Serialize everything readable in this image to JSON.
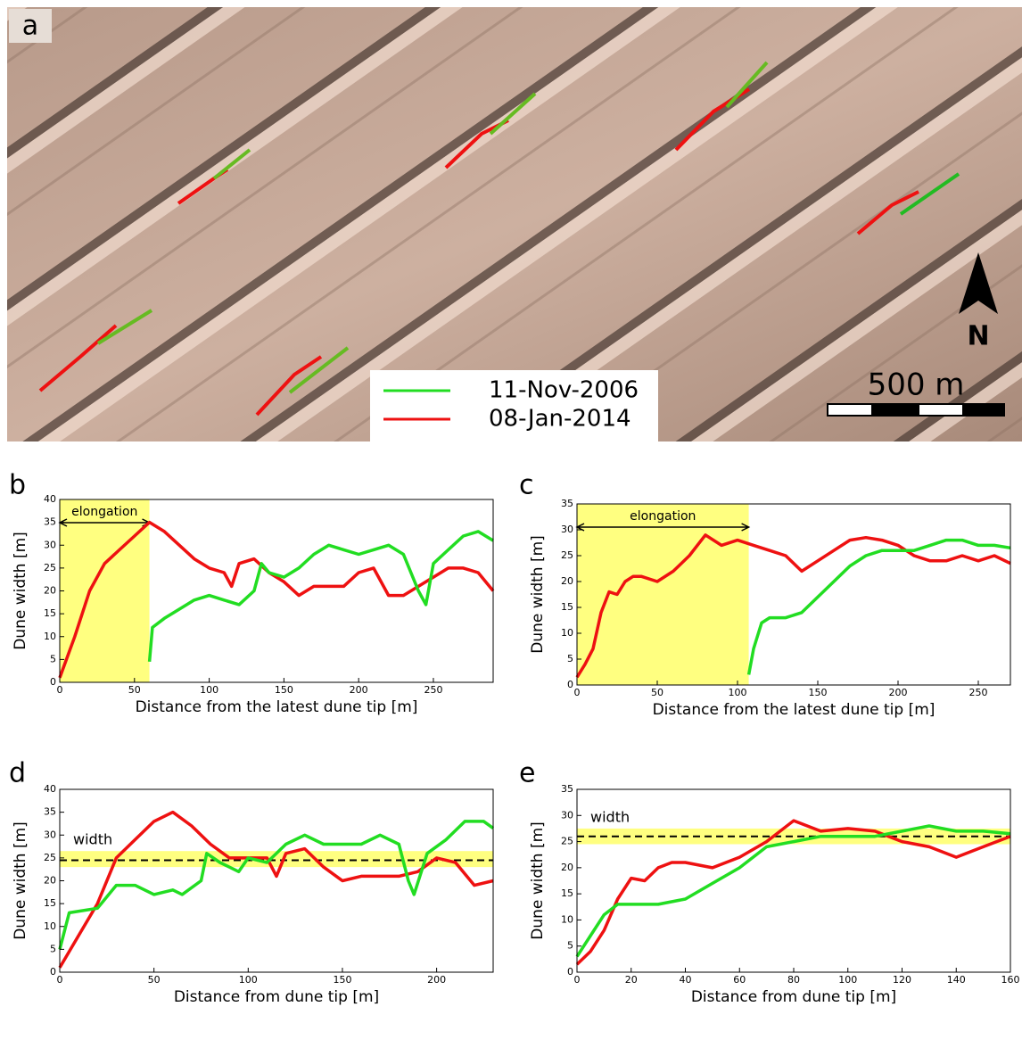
{
  "image_panel": {
    "label": "a",
    "legend": [
      {
        "name": "11-Nov-2006",
        "color": "#22dd22"
      },
      {
        "name": "08-Jan-2014",
        "color": "#ee1111"
      }
    ],
    "scale_label": "500 m",
    "north_label": "N"
  },
  "chart_data": [
    {
      "type": "line",
      "panel": "b",
      "xlabel": "Distance from the latest dune tip [m]",
      "ylabel": "Dune width [m]",
      "xlim": [
        0,
        290
      ],
      "ylim": [
        0,
        40
      ],
      "xticks": [
        0,
        50,
        100,
        150,
        200,
        250
      ],
      "yticks": [
        0,
        5,
        10,
        15,
        20,
        25,
        30,
        35,
        40
      ],
      "highlight_x": [
        0,
        60
      ],
      "highlight_label": "elongation",
      "series": [
        {
          "color": "#ee1111",
          "x": [
            0,
            10,
            20,
            30,
            40,
            50,
            60,
            70,
            80,
            90,
            100,
            110,
            115,
            120,
            130,
            140,
            150,
            160,
            170,
            180,
            190,
            200,
            210,
            220,
            230,
            240,
            250,
            260,
            270,
            280,
            290
          ],
          "values": [
            1,
            10,
            20,
            26,
            29,
            32,
            35,
            33,
            30,
            27,
            25,
            24,
            21,
            26,
            27,
            24,
            22,
            19,
            21,
            21,
            21,
            24,
            25,
            19,
            19,
            21,
            23,
            25,
            25,
            24,
            20
          ]
        },
        {
          "color": "#22dd22",
          "x": [
            60,
            62,
            70,
            80,
            90,
            100,
            110,
            120,
            130,
            135,
            140,
            150,
            160,
            170,
            180,
            190,
            200,
            210,
            220,
            230,
            240,
            245,
            250,
            260,
            270,
            280,
            290
          ],
          "values": [
            4.5,
            12,
            14,
            16,
            18,
            19,
            18,
            17,
            20,
            26,
            24,
            23,
            25,
            28,
            30,
            29,
            28,
            29,
            30,
            28,
            20,
            17,
            26,
            29,
            32,
            33,
            31
          ]
        }
      ]
    },
    {
      "type": "line",
      "panel": "c",
      "xlabel": "Distance from the latest dune tip [m]",
      "ylabel": "Dune width [m]",
      "xlim": [
        0,
        270
      ],
      "ylim": [
        0,
        35
      ],
      "xticks": [
        0,
        50,
        100,
        150,
        200,
        250
      ],
      "yticks": [
        0,
        5,
        10,
        15,
        20,
        25,
        30,
        35
      ],
      "highlight_x": [
        0,
        107
      ],
      "highlight_label": "elongation",
      "series": [
        {
          "color": "#ee1111",
          "x": [
            0,
            5,
            10,
            15,
            20,
            25,
            30,
            35,
            40,
            50,
            60,
            70,
            80,
            90,
            100,
            110,
            120,
            130,
            140,
            150,
            160,
            170,
            180,
            190,
            200,
            210,
            220,
            230,
            240,
            250,
            260,
            270
          ],
          "values": [
            1.5,
            4,
            7,
            14,
            18,
            17.5,
            20,
            21,
            21,
            20,
            22,
            25,
            29,
            27,
            28,
            27,
            26,
            25,
            22,
            24,
            26,
            28,
            28.5,
            28,
            27,
            25,
            24,
            24,
            25,
            24,
            25,
            23.5
          ]
        },
        {
          "color": "#22dd22",
          "x": [
            107,
            110,
            115,
            120,
            130,
            140,
            150,
            160,
            170,
            180,
            190,
            200,
            210,
            220,
            230,
            240,
            250,
            260,
            270
          ],
          "values": [
            2,
            7,
            12,
            13,
            13,
            14,
            17,
            20,
            23,
            25,
            26,
            26,
            26,
            27,
            28,
            28,
            27,
            27,
            26.5
          ]
        }
      ]
    },
    {
      "type": "line",
      "panel": "d",
      "xlabel": "Distance from dune tip [m]",
      "ylabel": "Dune width [m]",
      "xlim": [
        0,
        230
      ],
      "ylim": [
        0,
        40
      ],
      "xticks": [
        0,
        50,
        100,
        150,
        200
      ],
      "yticks": [
        0,
        5,
        10,
        15,
        20,
        25,
        30,
        35,
        40
      ],
      "reference_line": 24.5,
      "reference_band": [
        23,
        26.5
      ],
      "reference_label": "width",
      "series": [
        {
          "color": "#ee1111",
          "x": [
            0,
            10,
            20,
            30,
            40,
            50,
            60,
            70,
            80,
            90,
            100,
            110,
            115,
            120,
            130,
            140,
            150,
            160,
            170,
            180,
            190,
            200,
            210,
            220,
            230
          ],
          "values": [
            1,
            8,
            15,
            25,
            29,
            33,
            35,
            32,
            28,
            25,
            25,
            25,
            21,
            26,
            27,
            23,
            20,
            21,
            21,
            21,
            22,
            25,
            24,
            19,
            20
          ]
        },
        {
          "color": "#22dd22",
          "x": [
            0,
            5,
            20,
            30,
            40,
            50,
            60,
            65,
            75,
            78,
            85,
            95,
            100,
            110,
            120,
            130,
            140,
            150,
            160,
            170,
            180,
            185,
            188,
            195,
            205,
            215,
            225,
            230
          ],
          "values": [
            5,
            13,
            14,
            19,
            19,
            17,
            18,
            17,
            20,
            26,
            24,
            22,
            25,
            24,
            28,
            30,
            28,
            28,
            28,
            30,
            28,
            20,
            17,
            26,
            29,
            33,
            33,
            31.5
          ]
        }
      ]
    },
    {
      "type": "line",
      "panel": "e",
      "xlabel": "Distance from dune tip [m]",
      "ylabel": "Dune width [m]",
      "xlim": [
        0,
        160
      ],
      "ylim": [
        0,
        35
      ],
      "xticks": [
        0,
        20,
        40,
        60,
        80,
        100,
        120,
        140,
        160
      ],
      "yticks": [
        0,
        5,
        10,
        15,
        20,
        25,
        30,
        35
      ],
      "reference_line": 26,
      "reference_band": [
        24.5,
        27.5
      ],
      "reference_label": "width",
      "series": [
        {
          "color": "#ee1111",
          "x": [
            0,
            5,
            10,
            15,
            20,
            25,
            30,
            35,
            40,
            50,
            60,
            70,
            80,
            90,
            100,
            110,
            120,
            130,
            140,
            150,
            160
          ],
          "values": [
            1.5,
            4,
            8,
            14,
            18,
            17.5,
            20,
            21,
            21,
            20,
            22,
            25,
            29,
            27,
            27.5,
            27,
            25,
            24,
            22,
            24,
            26
          ]
        },
        {
          "color": "#22dd22",
          "x": [
            0,
            5,
            10,
            15,
            20,
            30,
            40,
            50,
            60,
            70,
            80,
            90,
            100,
            110,
            120,
            130,
            140,
            150,
            160
          ],
          "values": [
            3,
            7,
            11,
            13,
            13,
            13,
            14,
            17,
            20,
            24,
            25,
            26,
            26,
            26,
            27,
            28,
            27,
            27,
            26.5
          ]
        }
      ]
    }
  ]
}
